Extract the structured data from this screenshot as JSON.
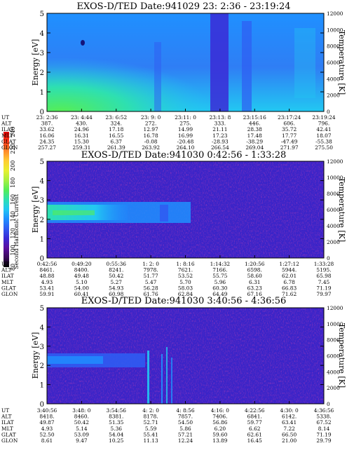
{
  "colors": {
    "colormap": [
      "#000000",
      "#3a0a5a",
      "#5a0fa0",
      "#3a2ad6",
      "#2f5cf2",
      "#1f90ff",
      "#22c8f2",
      "#2ee0b0",
      "#55ee55",
      "#a8f040",
      "#e8f030",
      "#ffcc33",
      "#ff8a2a",
      "#ff3a1a",
      "#dd0000"
    ]
  },
  "colorbar": {
    "label": "Second Harmonic Current",
    "tick_labels": [
      "80",
      "100",
      "120",
      "140",
      "160",
      "180",
      "200",
      "220",
      "240"
    ]
  },
  "chart_data": [
    {
      "type": "heatmap",
      "title": "EXOS-D/TED   Date:941029  23: 2:36 - 23:19:24",
      "ylabel": "Energy [eV]",
      "ylabel_right": "Temperature [K]",
      "ylim": [
        0,
        5
      ],
      "y_ticks": [
        "0",
        "1",
        "2",
        "3",
        "4",
        "5"
      ],
      "ylim_right": [
        0,
        12000
      ],
      "y_ticks_right": [
        "0",
        "2000",
        "4000",
        "6000",
        "8000",
        "10000",
        "12000"
      ],
      "orbit_rows": [
        {
          "name": "UT",
          "values": [
            "23: 2:36",
            "23: 4:44",
            "23: 6:52",
            "23: 9: 0",
            "23:11: 0",
            "23:13: 8",
            "23:15:16",
            "23:17:24",
            "23:19:24"
          ]
        },
        {
          "name": "ALT",
          "values": [
            "387.",
            "430.",
            "324.",
            "272.",
            "275.",
            "333.",
            "446.",
            "606.",
            "796."
          ]
        },
        {
          "name": "ILAT",
          "values": [
            "33.62",
            "24.96",
            "17.18",
            "12.97",
            "14.99",
            "21.11",
            "28.38",
            "35.72",
            "42.41"
          ]
        },
        {
          "name": "MLT",
          "values": [
            "16.06",
            "16.31",
            "16.55",
            "16.78",
            "16.99",
            "17.23",
            "17.48",
            "17.77",
            "18.07"
          ]
        },
        {
          "name": "GLAT",
          "values": [
            "24.35",
            "15.30",
            "6.37",
            "-0.08",
            "-20.48",
            "-28.93",
            "-38.29",
            "-47.49",
            "-55.38"
          ]
        },
        {
          "name": "GLON",
          "values": [
            "257.27",
            "259.31",
            "261.39",
            "263.92",
            "264.10",
            "266.54",
            "269.04",
            "271.97",
            "275.50"
          ]
        }
      ]
    },
    {
      "type": "heatmap",
      "title": "EXOS-D/TED   Date:941030  0:42:56 - 1:33:28",
      "ylabel": "Energy [eV]",
      "ylabel_right": "Temperature [K]",
      "ylim": [
        0,
        5
      ],
      "y_ticks": [
        "0",
        "1",
        "2",
        "3",
        "4",
        "5"
      ],
      "ylim_right": [
        0,
        12000
      ],
      "y_ticks_right": [
        "0",
        "2000",
        "4000",
        "6000",
        "8000",
        "10000",
        "12000"
      ],
      "orbit_rows": [
        {
          "name": "UT",
          "values": [
            "0:42:56",
            "0:49:20",
            "0:55:36",
            "1: 2: 0",
            "1: 8:16",
            "1:14:32",
            "1:20:56",
            "1:27:12",
            "1:33:28"
          ]
        },
        {
          "name": "ALT",
          "values": [
            "8461.",
            "8400.",
            "8241.",
            "7978.",
            "7621.",
            "7166.",
            "6598.",
            "5944.",
            "5195."
          ]
        },
        {
          "name": "ILAT",
          "values": [
            "48.88",
            "49.48",
            "50.42",
            "51.77",
            "53.52",
            "55.75",
            "58.60",
            "62.01",
            "65.98"
          ]
        },
        {
          "name": "MLT",
          "values": [
            "4.93",
            "5.10",
            "5.27",
            "5.47",
            "5.70",
            "5.96",
            "6.31",
            "6.78",
            "7.45"
          ]
        },
        {
          "name": "GLAT",
          "values": [
            "53.41",
            "54.00",
            "54.93",
            "56.28",
            "58.03",
            "60.30",
            "63.23",
            "66.83",
            "71.19"
          ]
        },
        {
          "name": "GLON",
          "values": [
            "59.91",
            "60.41",
            "60.98",
            "61.76",
            "62.84",
            "64.49",
            "67.16",
            "71.62",
            "79.97"
          ]
        }
      ]
    },
    {
      "type": "heatmap",
      "title": "EXOS-D/TED   Date:941030  3:40:56 - 4:36:56",
      "ylabel": "Energy [eV]",
      "ylabel_right": "Temperature [K]",
      "ylim": [
        0,
        5
      ],
      "y_ticks": [
        "0",
        "1",
        "2",
        "3",
        "4",
        "5"
      ],
      "ylim_right": [
        0,
        12000
      ],
      "y_ticks_right": [
        "0",
        "2000",
        "4000",
        "6000",
        "8000",
        "10000",
        "12000"
      ],
      "orbit_rows": [
        {
          "name": "UT",
          "values": [
            "3:40:56",
            "3:48: 0",
            "3:54:56",
            "4: 2: 0",
            "4: 8:56",
            "4:16: 0",
            "4:22:56",
            "4:30: 0",
            "4:36:56"
          ]
        },
        {
          "name": "ALT",
          "values": [
            "8418.",
            "8460.",
            "8381.",
            "8178.",
            "7857.",
            "7406.",
            "6841.",
            "6142.",
            "5338."
          ]
        },
        {
          "name": "ILAT",
          "values": [
            "49.87",
            "50.42",
            "51.35",
            "52.71",
            "54.50",
            "56.86",
            "59.77",
            "63.41",
            "67.52"
          ]
        },
        {
          "name": "MLT",
          "values": [
            "4.93",
            "5.14",
            "5.36",
            "5.59",
            "5.86",
            "6.20",
            "6.62",
            "7.22",
            "8.14"
          ]
        },
        {
          "name": "GLAT",
          "values": [
            "52.50",
            "53.09",
            "54.04",
            "55.41",
            "57.21",
            "59.60",
            "62.61",
            "66.50",
            "71.19"
          ]
        },
        {
          "name": "GLON",
          "values": [
            "8.61",
            "9.47",
            "10.25",
            "11.13",
            "12.24",
            "13.89",
            "16.45",
            "21.00",
            "29.79"
          ]
        }
      ]
    }
  ]
}
